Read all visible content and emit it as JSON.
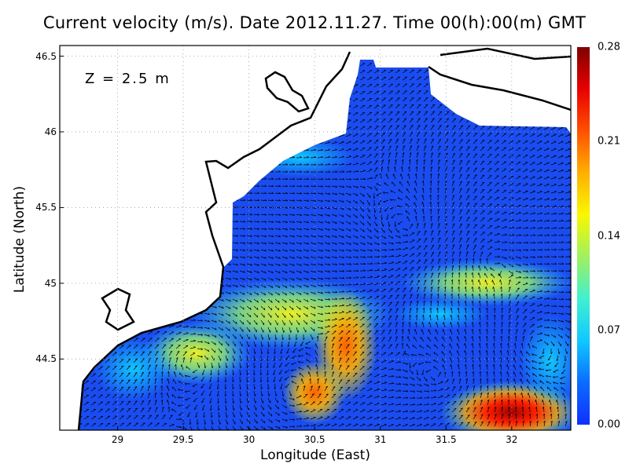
{
  "title": "Current velocity (m/s). Date 2012.11.27. Time 00(h):00(m) GMT",
  "depth_label": "Z = 2.5 m",
  "xlabel": "Longitude (East)",
  "ylabel": "Latitude (North)",
  "x_range": [
    28.56,
    32.45
  ],
  "y_range": [
    44.03,
    46.57
  ],
  "x_ticks": [
    "29",
    "29.5",
    "30",
    "30.5",
    "31",
    "31.5",
    "32"
  ],
  "y_ticks": [
    "44.5",
    "45",
    "45.5",
    "46",
    "46.5"
  ],
  "colorbar": {
    "range": [
      0.0,
      0.28
    ],
    "ticks": [
      "0.00",
      "0.07",
      "0.14",
      "0.21",
      "0.28"
    ],
    "colors": [
      "#1030ff",
      "#0a6cff",
      "#10c8ff",
      "#40f0d0",
      "#a0f060",
      "#f8f800",
      "#ffb000",
      "#ff5000",
      "#e80000",
      "#800000"
    ]
  },
  "grid": "dotted",
  "land_color": "#ffffff",
  "coastline_color": "#000000"
}
